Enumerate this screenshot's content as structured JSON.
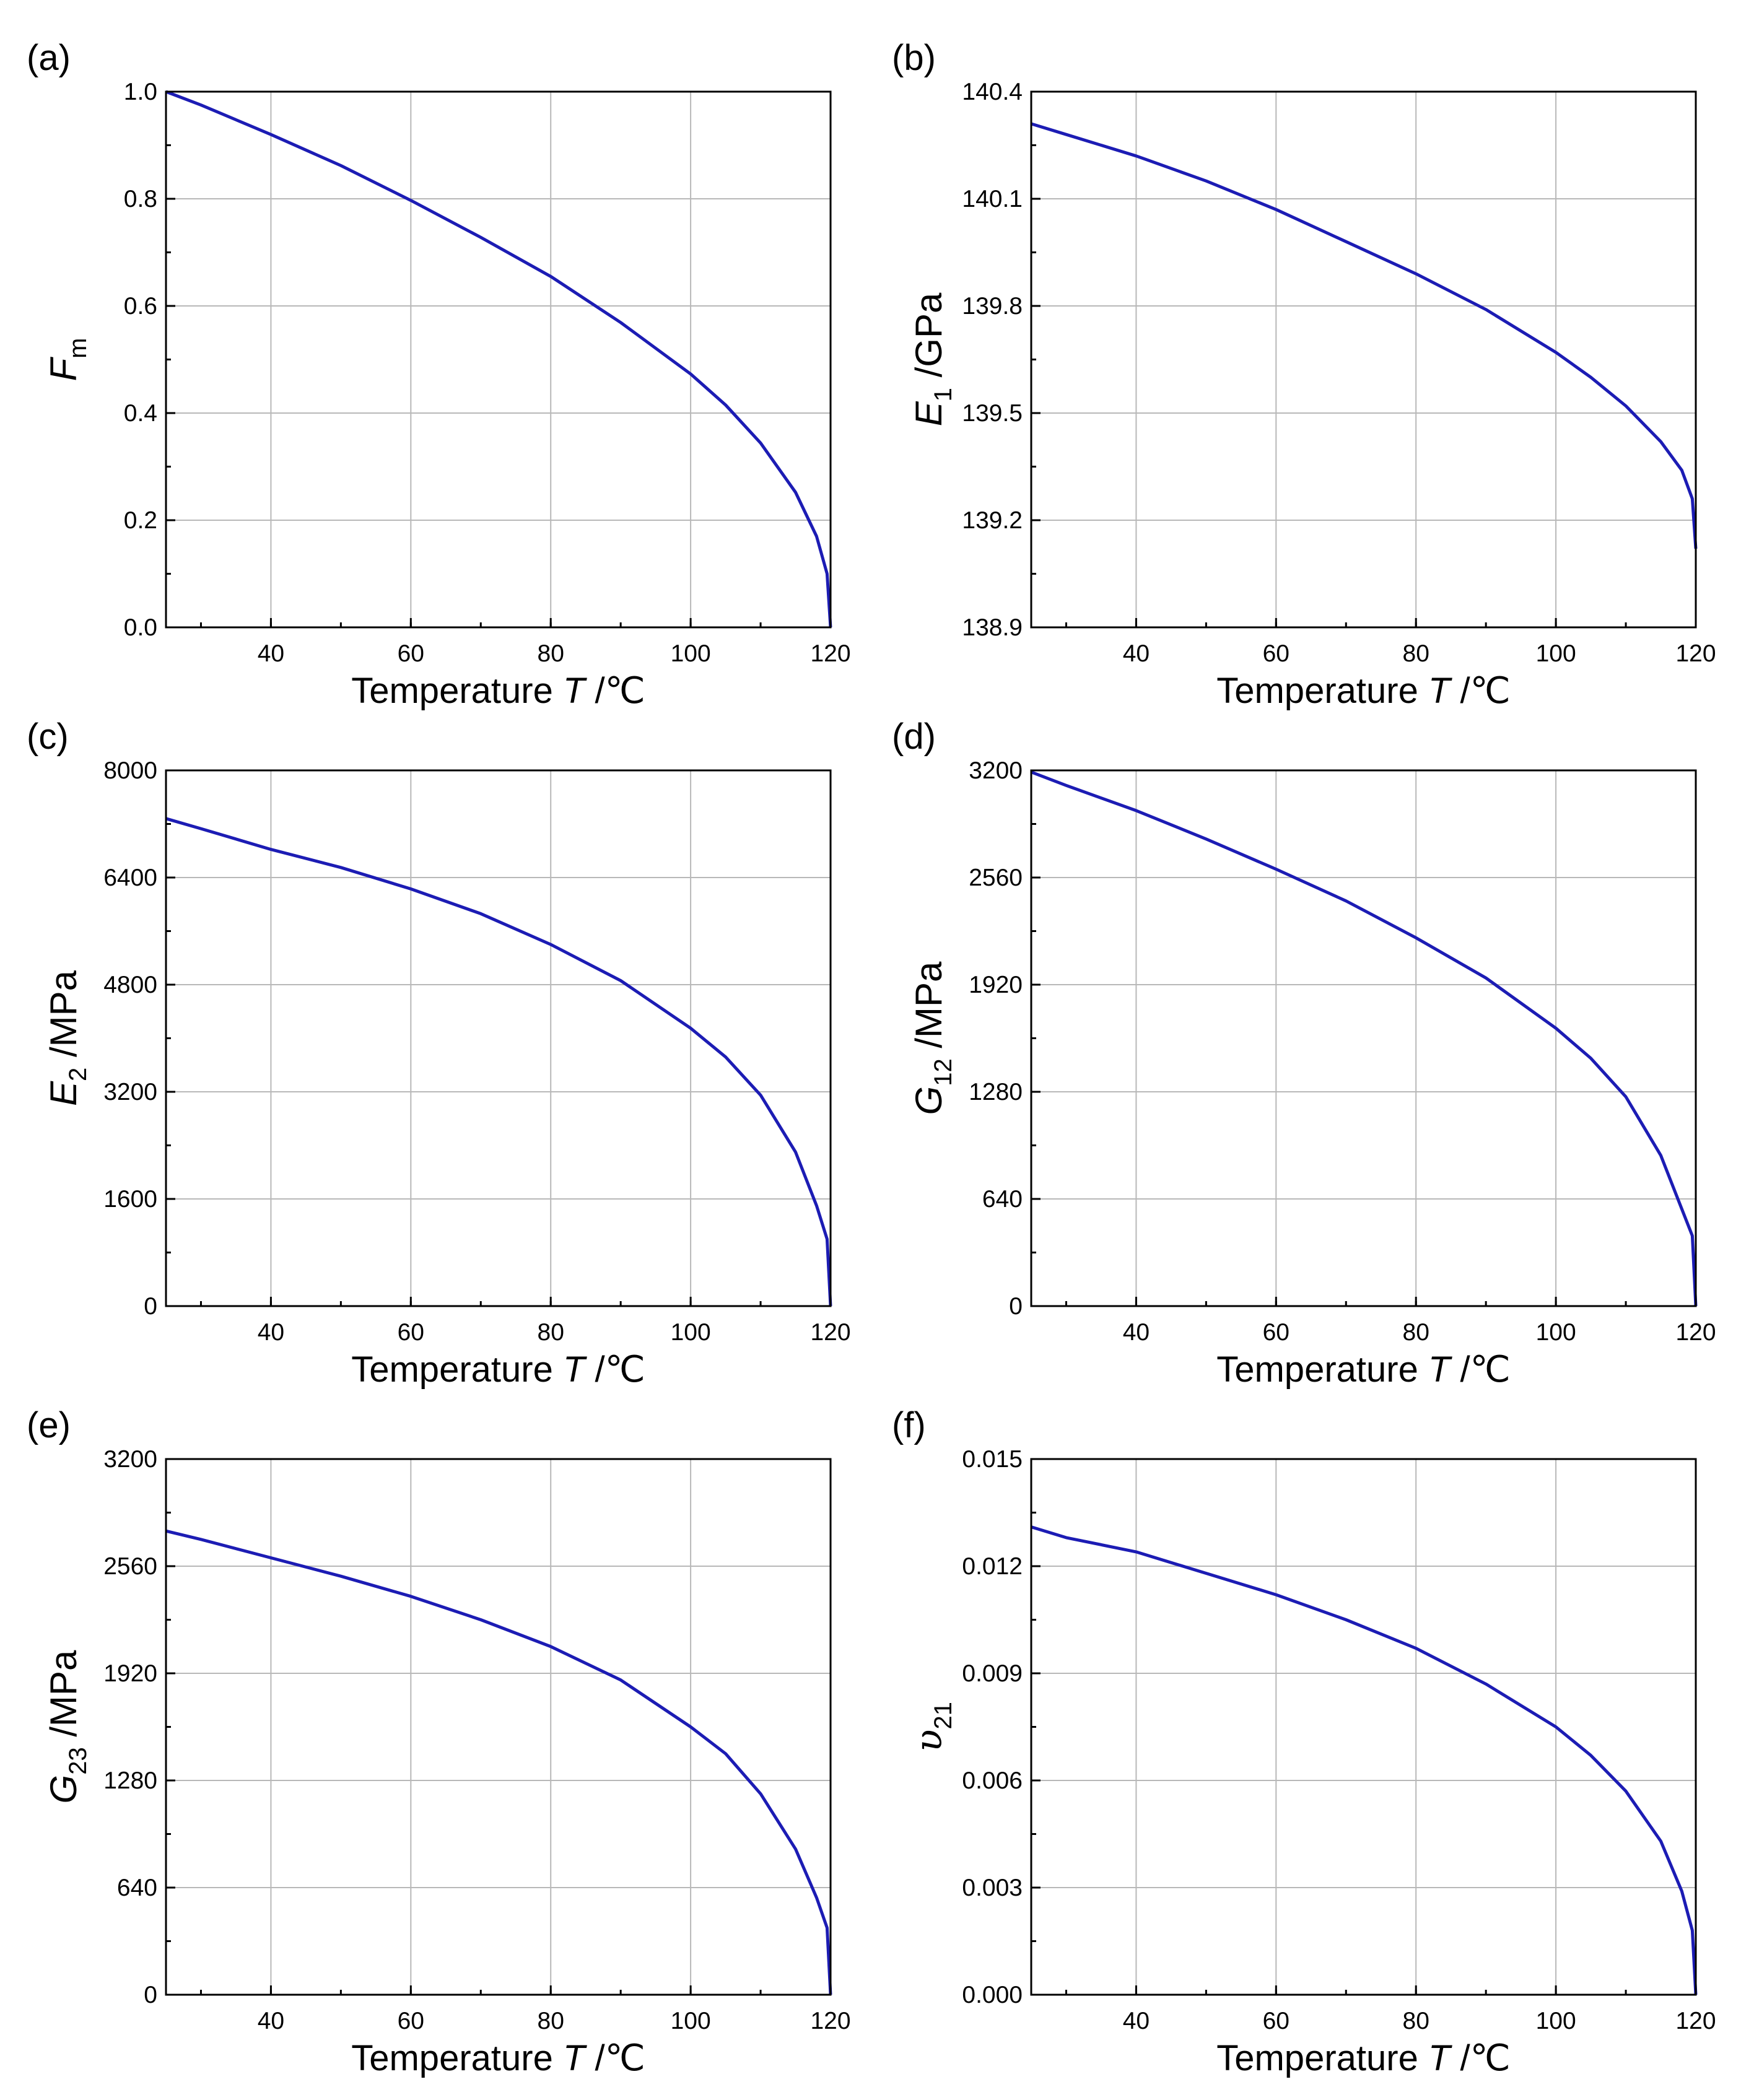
{
  "figure": {
    "curve_color": "#1c1cb4",
    "grid_color": "#b8b8b8"
  },
  "chart_data": [
    {
      "type": "line",
      "panel_label": "(a)",
      "xlabel": {
        "text": "Temperature ",
        "symbol": "T",
        "unit": " /℃"
      },
      "ylabel": {
        "main": "F",
        "sub": "m",
        "unit": ""
      },
      "xlim": [
        25,
        120
      ],
      "ylim": [
        0.0,
        1.0
      ],
      "xticks": [
        "40",
        "60",
        "80",
        "100",
        "120"
      ],
      "yticks": [
        "0.0",
        "0.2",
        "0.4",
        "0.6",
        "0.8",
        "1.0"
      ],
      "series": [
        {
          "name": "F_m",
          "x": [
            25,
            30,
            40,
            50,
            60,
            70,
            80,
            90,
            100,
            105,
            110,
            115,
            118,
            119.5,
            120
          ],
          "y": [
            1.0,
            0.975,
            0.92,
            0.862,
            0.797,
            0.728,
            0.655,
            0.569,
            0.473,
            0.415,
            0.344,
            0.252,
            0.17,
            0.1,
            0.0
          ]
        }
      ]
    },
    {
      "type": "line",
      "panel_label": "(b)",
      "xlabel": {
        "text": "Temperature ",
        "symbol": "T",
        "unit": " /℃"
      },
      "ylabel": {
        "main": "E",
        "sub": "1",
        "unit": " /GPa"
      },
      "xlim": [
        25,
        120
      ],
      "ylim": [
        138.9,
        140.4
      ],
      "xticks": [
        "40",
        "60",
        "80",
        "100",
        "120"
      ],
      "yticks": [
        "138.9",
        "139.2",
        "139.5",
        "139.8",
        "140.1",
        "140.4"
      ],
      "series": [
        {
          "name": "E_1",
          "x": [
            25,
            30,
            40,
            50,
            60,
            70,
            80,
            90,
            100,
            105,
            110,
            115,
            118,
            119.5,
            120
          ],
          "y": [
            140.31,
            140.28,
            140.22,
            140.15,
            140.07,
            139.98,
            139.89,
            139.79,
            139.67,
            139.6,
            139.52,
            139.42,
            139.34,
            139.26,
            139.12
          ]
        }
      ]
    },
    {
      "type": "line",
      "panel_label": "(c)",
      "xlabel": {
        "text": "Temperature ",
        "symbol": "T",
        "unit": " /℃"
      },
      "ylabel": {
        "main": "E",
        "sub": "2",
        "unit": " /MPa"
      },
      "xlim": [
        25,
        120
      ],
      "ylim": [
        0,
        8000
      ],
      "xticks": [
        "40",
        "60",
        "80",
        "100",
        "120"
      ],
      "yticks": [
        "0",
        "1600",
        "3200",
        "4800",
        "6400",
        "8000"
      ],
      "series": [
        {
          "name": "E_2",
          "x": [
            25,
            30,
            40,
            50,
            60,
            70,
            80,
            90,
            100,
            105,
            110,
            115,
            118,
            119.5,
            120
          ],
          "y": [
            7280,
            7130,
            6820,
            6550,
            6230,
            5860,
            5400,
            4860,
            4150,
            3720,
            3150,
            2300,
            1500,
            1000,
            0
          ]
        }
      ]
    },
    {
      "type": "line",
      "panel_label": "(d)",
      "xlabel": {
        "text": "Temperature ",
        "symbol": "T",
        "unit": " /℃"
      },
      "ylabel": {
        "main": "G",
        "sub": "12",
        "unit": " /MPa"
      },
      "xlim": [
        25,
        120
      ],
      "ylim": [
        0,
        3200
      ],
      "xticks": [
        "40",
        "60",
        "80",
        "100",
        "120"
      ],
      "yticks": [
        "0",
        "640",
        "1280",
        "1920",
        "2560",
        "3200"
      ],
      "series": [
        {
          "name": "G_12",
          "x": [
            25,
            30,
            40,
            50,
            60,
            70,
            80,
            90,
            100,
            105,
            110,
            115,
            118,
            119.5,
            120
          ],
          "y": [
            3190,
            3110,
            2960,
            2790,
            2610,
            2420,
            2200,
            1960,
            1660,
            1480,
            1250,
            900,
            580,
            420,
            0
          ]
        }
      ]
    },
    {
      "type": "line",
      "panel_label": "(e)",
      "xlabel": {
        "text": "Temperature ",
        "symbol": "T",
        "unit": " /℃"
      },
      "ylabel": {
        "main": "G",
        "sub": "23",
        "unit": " /MPa"
      },
      "xlim": [
        25,
        120
      ],
      "ylim": [
        0,
        3200
      ],
      "xticks": [
        "40",
        "60",
        "80",
        "100",
        "120"
      ],
      "yticks": [
        "0",
        "640",
        "1280",
        "1920",
        "2560",
        "3200"
      ],
      "series": [
        {
          "name": "G_23",
          "x": [
            25,
            30,
            40,
            50,
            60,
            70,
            80,
            90,
            100,
            105,
            110,
            115,
            118,
            119.5,
            120
          ],
          "y": [
            2770,
            2720,
            2610,
            2500,
            2380,
            2240,
            2080,
            1880,
            1600,
            1440,
            1200,
            870,
            580,
            400,
            0
          ]
        }
      ]
    },
    {
      "type": "line",
      "panel_label": "(f)",
      "xlabel": {
        "text": "Temperature ",
        "symbol": "T",
        "unit": " /℃"
      },
      "ylabel": {
        "main": "υ",
        "sub": "21",
        "unit": "",
        "serif": true
      },
      "xlim": [
        25,
        120
      ],
      "ylim": [
        0.0,
        0.015
      ],
      "xticks": [
        "40",
        "60",
        "80",
        "100",
        "120"
      ],
      "yticks": [
        "0.000",
        "0.003",
        "0.006",
        "0.009",
        "0.012",
        "0.015"
      ],
      "series": [
        {
          "name": "v_21",
          "x": [
            25,
            30,
            40,
            50,
            60,
            70,
            80,
            90,
            100,
            105,
            110,
            115,
            118,
            119.5,
            120
          ],
          "y": [
            0.0131,
            0.0128,
            0.0124,
            0.0118,
            0.0112,
            0.0105,
            0.0097,
            0.0087,
            0.0075,
            0.0067,
            0.0057,
            0.0043,
            0.0029,
            0.0018,
            0.0
          ]
        }
      ]
    }
  ]
}
